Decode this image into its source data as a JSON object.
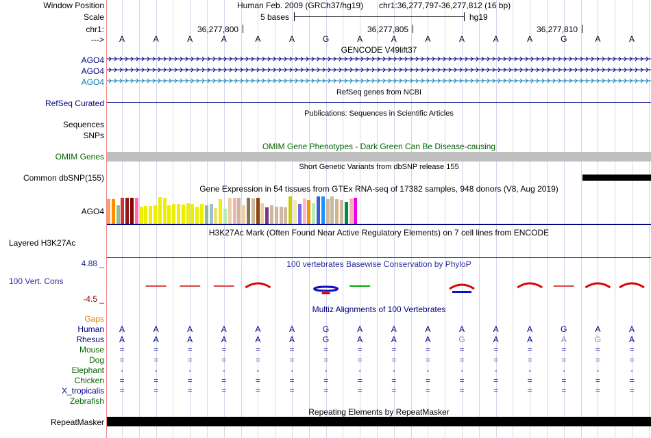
{
  "header": {
    "window_position_label": "Window Position",
    "scale_label": "Scale",
    "chrom_label": "chr1:",
    "strand_label": "--->",
    "assembly_text": "Human Feb. 2009 (GRCh37/hg19)",
    "position_text": "chr1:36,277,797-36,277,812 (16 bp)",
    "scale_text": "5 bases",
    "assembly_short": "hg19",
    "coord_ticks": [
      "36,277,800",
      "36,277,805",
      "36,277,810"
    ]
  },
  "sequence": [
    "A",
    "A",
    "A",
    "A",
    "A",
    "A",
    "G",
    "A",
    "A",
    "A",
    "A",
    "A",
    "A",
    "G",
    "A",
    "A"
  ],
  "tracks": {
    "gencode": {
      "title": "GENCODE V49lift37",
      "genes": [
        "AGO4",
        "AGO4",
        "AGO4"
      ],
      "colors": [
        "#000080",
        "#000080",
        "#0c7cb0"
      ]
    },
    "refseq": {
      "title": "RefSeq genes from NCBI",
      "label": "RefSeq Curated"
    },
    "publications": {
      "title": "Publications: Sequences in Scientific Articles",
      "labels": [
        "Sequences",
        "SNPs"
      ]
    },
    "omim": {
      "title": "OMIM Gene Phenotypes - Dark Green Can Be Disease-causing",
      "label": "OMIM Genes"
    },
    "dbsnp": {
      "title": "Short Genetic Variants from dbSNP release 155",
      "label": "Common dbSNP(155)"
    },
    "gtex": {
      "title": "Gene Expression in 54 tissues from GTEx RNA-seq of 17382 samples, 948 donors (V8, Aug 2019)",
      "label": "AGO4",
      "bars": [
        {
          "h": 0.9,
          "c": "#f4a460"
        },
        {
          "h": 0.9,
          "c": "#ff8c00"
        },
        {
          "h": 0.68,
          "c": "#8fbc8f"
        },
        {
          "h": 0.95,
          "c": "#cd3333"
        },
        {
          "h": 0.95,
          "c": "#8b1a1a"
        },
        {
          "h": 0.95,
          "c": "#8b0000"
        },
        {
          "h": 0.95,
          "c": "#ff69b4"
        },
        {
          "h": 0.62,
          "c": "#eeee00"
        },
        {
          "h": 0.65,
          "c": "#eeee00"
        },
        {
          "h": 0.65,
          "c": "#eeee00"
        },
        {
          "h": 0.68,
          "c": "#eeee00"
        },
        {
          "h": 0.98,
          "c": "#eeee00"
        },
        {
          "h": 0.95,
          "c": "#eeee00"
        },
        {
          "h": 0.68,
          "c": "#eeee00"
        },
        {
          "h": 0.72,
          "c": "#eeee00"
        },
        {
          "h": 0.72,
          "c": "#eeee00"
        },
        {
          "h": 0.7,
          "c": "#eeee00"
        },
        {
          "h": 0.75,
          "c": "#eeee00"
        },
        {
          "h": 0.72,
          "c": "#eeee00"
        },
        {
          "h": 0.62,
          "c": "#eeee00"
        },
        {
          "h": 0.72,
          "c": "#eeee00"
        },
        {
          "h": 0.68,
          "c": "#8fbc8f"
        },
        {
          "h": 0.72,
          "c": "#9ac0cd"
        },
        {
          "h": 0.58,
          "c": "#eedd82"
        },
        {
          "h": 0.9,
          "c": "#eeee00"
        },
        {
          "h": 0.55,
          "c": "#b4eeb4"
        },
        {
          "h": 0.95,
          "c": "#eecfa1"
        },
        {
          "h": 0.95,
          "c": "#eeb4b4"
        },
        {
          "h": 0.95,
          "c": "#cdb79e"
        },
        {
          "h": 0.68,
          "c": "#eecfa1"
        },
        {
          "h": 0.95,
          "c": "#8b7355"
        },
        {
          "h": 0.92,
          "c": "#cdb79e"
        },
        {
          "h": 0.95,
          "c": "#8b4513"
        },
        {
          "h": 0.75,
          "c": "#eecfa1"
        },
        {
          "h": 0.6,
          "c": "#7a378b"
        },
        {
          "h": 0.68,
          "c": "#cdb79e"
        },
        {
          "h": 0.62,
          "c": "#cdb79e"
        },
        {
          "h": 0.62,
          "c": "#cdb79e"
        },
        {
          "h": 0.6,
          "c": "#cdb79e"
        },
        {
          "h": 1.0,
          "c": "#cdcd00"
        },
        {
          "h": 0.88,
          "c": "#eeeea0"
        },
        {
          "h": 0.72,
          "c": "#7a67ee"
        },
        {
          "h": 0.92,
          "c": "#ffb6c1"
        },
        {
          "h": 0.88,
          "c": "#ee9a00"
        },
        {
          "h": 0.75,
          "c": "#b4eeb4"
        },
        {
          "h": 1.0,
          "c": "#3a5fcd"
        },
        {
          "h": 1.0,
          "c": "#1e90ff"
        },
        {
          "h": 0.9,
          "c": "#cdb79e"
        },
        {
          "h": 1.0,
          "c": "#cdb79e"
        },
        {
          "h": 0.9,
          "c": "#d2b48c"
        },
        {
          "h": 0.88,
          "c": "#cdb79e"
        },
        {
          "h": 0.8,
          "c": "#008b45"
        },
        {
          "h": 0.92,
          "c": "#eeb4b4"
        },
        {
          "h": 0.95,
          "c": "#ee00ee"
        }
      ]
    },
    "h3k27ac": {
      "title": "H3K27Ac Mark (Often Found Near Active Regulatory Elements) on 7 cell lines from ENCODE",
      "label": "Layered H3K27Ac"
    },
    "conservation": {
      "title": "100 vertebrates Basewise Conservation by PhyloP",
      "label": "100 Vert. Cons",
      "ymax": "4.88 _",
      "ymin": "-4.5 _"
    },
    "multiz": {
      "title": "Multiz Alignments of 100 Vertebrates",
      "gaps_label": "Gaps",
      "species": [
        {
          "name": "Human",
          "color": "#000080",
          "row": [
            "A",
            "A",
            "A",
            "A",
            "A",
            "A",
            "G",
            "A",
            "A",
            "A",
            "A",
            "A",
            "A",
            "G",
            "A",
            "A"
          ]
        },
        {
          "name": "Rhesus",
          "color": "#000080",
          "row": [
            "A",
            "A",
            "A",
            "A",
            "A",
            "A",
            "G",
            "A",
            "A",
            "A",
            "G",
            "A",
            "A",
            "A",
            "G",
            "A"
          ]
        },
        {
          "name": "Mouse",
          "color": "#006400",
          "row": [
            "=",
            "=",
            "=",
            "=",
            "=",
            "=",
            "=",
            "=",
            "=",
            "=",
            "=",
            "=",
            "=",
            "=",
            "=",
            "="
          ]
        },
        {
          "name": "Dog",
          "color": "#006400",
          "row": [
            "=",
            "=",
            "=",
            "=",
            "=",
            "=",
            "=",
            "=",
            "=",
            "=",
            "=",
            "=",
            "=",
            "=",
            "=",
            "="
          ]
        },
        {
          "name": "Elephant",
          "color": "#006400",
          "row": [
            "-",
            "-",
            "-",
            "-",
            "-",
            "-",
            "-",
            "-",
            "-",
            "-",
            "-",
            "-",
            "-",
            "-",
            "-",
            "-"
          ]
        },
        {
          "name": "Chicken",
          "color": "#006400",
          "row": [
            "=",
            "=",
            "=",
            "=",
            "=",
            "=",
            "=",
            "=",
            "=",
            "=",
            "=",
            "=",
            "=",
            "=",
            "=",
            "="
          ]
        },
        {
          "name": "X_tropicalis",
          "color": "#000080",
          "row": [
            "=",
            "=",
            "=",
            "=",
            "=",
            "=",
            "=",
            "=",
            "=",
            "=",
            "=",
            "=",
            "=",
            "=",
            "=",
            "="
          ]
        },
        {
          "name": "Zebrafish",
          "color": "#006400",
          "row": [
            "",
            "",
            "",
            "",
            "",
            "",
            "",
            "",
            "",
            "",
            "",
            "",
            "",
            "",
            "",
            ""
          ]
        }
      ]
    },
    "repeatmasker": {
      "title": "Repeating Elements by RepeatMasker",
      "label": "RepeatMasker"
    }
  },
  "colors": {
    "grid": "#d6d6ee",
    "separator": "#e88",
    "navy": "#000080",
    "omim_gray": "#bfbfbf"
  }
}
